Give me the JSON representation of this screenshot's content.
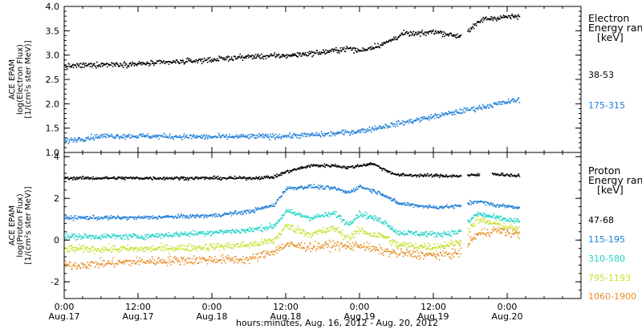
{
  "chart_data": [
    {
      "type": "scatter",
      "ylabel_lines": [
        "ACE EPAM",
        "log(Electron Flux)",
        "[1/(cm²s ster MeV)]"
      ],
      "ylim": [
        1.0,
        4.0
      ],
      "yticks": [
        1.0,
        1.5,
        2.0,
        2.5,
        3.0,
        3.5,
        4.0
      ],
      "yticklabels": [
        "1.0",
        "1.5",
        "2.0",
        "2.5",
        "3.0",
        "3.5",
        "4.0"
      ],
      "legend_title": [
        "Electron",
        "Energy ran",
        "[keV]"
      ],
      "series": [
        {
          "name": "38-53",
          "color": "#000000",
          "profile": [
            [
              0,
              2.78
            ],
            [
              6,
              2.82
            ],
            [
              12,
              2.83
            ],
            [
              18,
              2.87
            ],
            [
              24,
              2.92
            ],
            [
              30,
              2.98
            ],
            [
              36,
              3.0
            ],
            [
              42,
              3.07
            ],
            [
              46,
              3.15
            ],
            [
              48,
              3.1
            ],
            [
              52,
              3.25
            ],
            [
              55,
              3.45
            ],
            [
              58,
              3.45
            ],
            [
              60,
              3.5
            ],
            [
              64,
              3.4
            ],
            [
              66,
              3.55
            ],
            [
              68,
              3.75
            ],
            [
              72,
              3.8
            ],
            [
              74,
              3.8
            ]
          ],
          "gaps": [
            [
              64.5,
              65.5
            ]
          ],
          "noise": 0.05
        },
        {
          "name": "175-315",
          "color": "#1f7fd8",
          "profile": [
            [
              0,
              1.25
            ],
            [
              6,
              1.35
            ],
            [
              12,
              1.35
            ],
            [
              24,
              1.33
            ],
            [
              36,
              1.35
            ],
            [
              42,
              1.38
            ],
            [
              48,
              1.45
            ],
            [
              54,
              1.6
            ],
            [
              60,
              1.75
            ],
            [
              66,
              1.9
            ],
            [
              72,
              2.05
            ],
            [
              74,
              2.1
            ]
          ],
          "gaps": [],
          "noise": 0.05
        }
      ]
    },
    {
      "type": "scatter",
      "ylabel_lines": [
        "ACE EPAM",
        "log(Proton Flux)",
        "[1/(cm²s ster MeV)]"
      ],
      "ylim": [
        -2.8,
        4.2
      ],
      "yticks": [
        -2,
        0,
        2,
        4
      ],
      "yticklabels": [
        "-2",
        "0",
        "2",
        "4"
      ],
      "legend_title": [
        "Proton",
        "Energy ran",
        "[keV]"
      ],
      "series": [
        {
          "name": "47-68",
          "color": "#000000",
          "profile": [
            [
              0,
              3.0
            ],
            [
              30,
              3.0
            ],
            [
              34,
              3.05
            ],
            [
              36,
              3.3
            ],
            [
              40,
              3.6
            ],
            [
              44,
              3.6
            ],
            [
              46,
              3.5
            ],
            [
              50,
              3.7
            ],
            [
              52,
              3.4
            ],
            [
              54,
              3.15
            ],
            [
              64,
              3.1
            ],
            [
              70,
              3.2
            ],
            [
              74,
              3.1
            ]
          ],
          "gaps": [
            [
              64.5,
              65.5
            ],
            [
              67.5,
              69.5
            ]
          ],
          "noise": 0.07
        },
        {
          "name": "115-195",
          "color": "#1f7fd8",
          "profile": [
            [
              0,
              1.1
            ],
            [
              12,
              1.1
            ],
            [
              24,
              1.2
            ],
            [
              30,
              1.4
            ],
            [
              34,
              1.7
            ],
            [
              36,
              2.5
            ],
            [
              40,
              2.6
            ],
            [
              44,
              2.5
            ],
            [
              46,
              2.3
            ],
            [
              48,
              2.6
            ],
            [
              50,
              2.4
            ],
            [
              52,
              2.2
            ],
            [
              54,
              1.8
            ],
            [
              60,
              1.6
            ],
            [
              64,
              1.65
            ],
            [
              67,
              1.9
            ],
            [
              70,
              1.7
            ],
            [
              74,
              1.6
            ]
          ],
          "gaps": [
            [
              64.5,
              65.5
            ]
          ],
          "noise": 0.09
        },
        {
          "name": "310-580",
          "color": "#1fd3c7",
          "profile": [
            [
              0,
              0.2
            ],
            [
              12,
              0.2
            ],
            [
              24,
              0.4
            ],
            [
              30,
              0.5
            ],
            [
              34,
              0.7
            ],
            [
              36,
              1.4
            ],
            [
              40,
              1.1
            ],
            [
              44,
              1.3
            ],
            [
              46,
              0.8
            ],
            [
              48,
              1.3
            ],
            [
              50,
              1.1
            ],
            [
              52,
              0.9
            ],
            [
              54,
              0.4
            ],
            [
              60,
              0.3
            ],
            [
              64,
              0.4
            ],
            [
              67,
              1.3
            ],
            [
              70,
              1.1
            ],
            [
              74,
              0.9
            ]
          ],
          "gaps": [
            [
              64.5,
              65.5
            ]
          ],
          "noise": 0.13
        },
        {
          "name": "795-1193",
          "color": "#c8e02a",
          "profile": [
            [
              0,
              -0.4
            ],
            [
              12,
              -0.4
            ],
            [
              24,
              -0.3
            ],
            [
              30,
              -0.2
            ],
            [
              34,
              0.0
            ],
            [
              36,
              0.7
            ],
            [
              40,
              0.3
            ],
            [
              44,
              0.6
            ],
            [
              46,
              0.1
            ],
            [
              48,
              0.5
            ],
            [
              50,
              0.3
            ],
            [
              52,
              0.2
            ],
            [
              54,
              -0.2
            ],
            [
              60,
              -0.3
            ],
            [
              64,
              -0.1
            ],
            [
              67,
              1.0
            ],
            [
              70,
              0.8
            ],
            [
              74,
              0.5
            ]
          ],
          "gaps": [
            [
              64.5,
              65.5
            ]
          ],
          "noise": 0.17
        },
        {
          "name": "1060-1900",
          "color": "#e8902a",
          "profile": [
            [
              0,
              -1.2
            ],
            [
              12,
              -1.0
            ],
            [
              24,
              -0.9
            ],
            [
              30,
              -0.9
            ],
            [
              34,
              -0.5
            ],
            [
              36,
              -0.2
            ],
            [
              40,
              -0.3
            ],
            [
              44,
              -0.2
            ],
            [
              46,
              -0.3
            ],
            [
              48,
              -0.2
            ],
            [
              50,
              -0.4
            ],
            [
              52,
              -0.5
            ],
            [
              54,
              -0.6
            ],
            [
              60,
              -0.7
            ],
            [
              64,
              -0.6
            ],
            [
              67,
              0.3
            ],
            [
              70,
              0.5
            ],
            [
              74,
              0.3
            ]
          ],
          "gaps": [
            [
              64.5,
              65.5
            ]
          ],
          "noise": 0.2
        }
      ]
    }
  ],
  "x_axis": {
    "range_hours": [
      0,
      84
    ],
    "ticks": [
      {
        "hour": 0,
        "time": "0:00",
        "date": "Aug.17"
      },
      {
        "hour": 12,
        "time": "12:00",
        "date": "Aug.17"
      },
      {
        "hour": 24,
        "time": "0:00",
        "date": "Aug.18"
      },
      {
        "hour": 36,
        "time": "12:00",
        "date": "Aug.18"
      },
      {
        "hour": 48,
        "time": "0:00",
        "date": "Aug.19"
      },
      {
        "hour": 60,
        "time": "12:00",
        "date": "Aug.19"
      },
      {
        "hour": 72,
        "time": "0:00",
        "date": "Aug.20"
      }
    ],
    "minor_step_hours": 3,
    "title": "hours:minutes, Aug. 16, 2012 - Aug. 20, 2012"
  }
}
